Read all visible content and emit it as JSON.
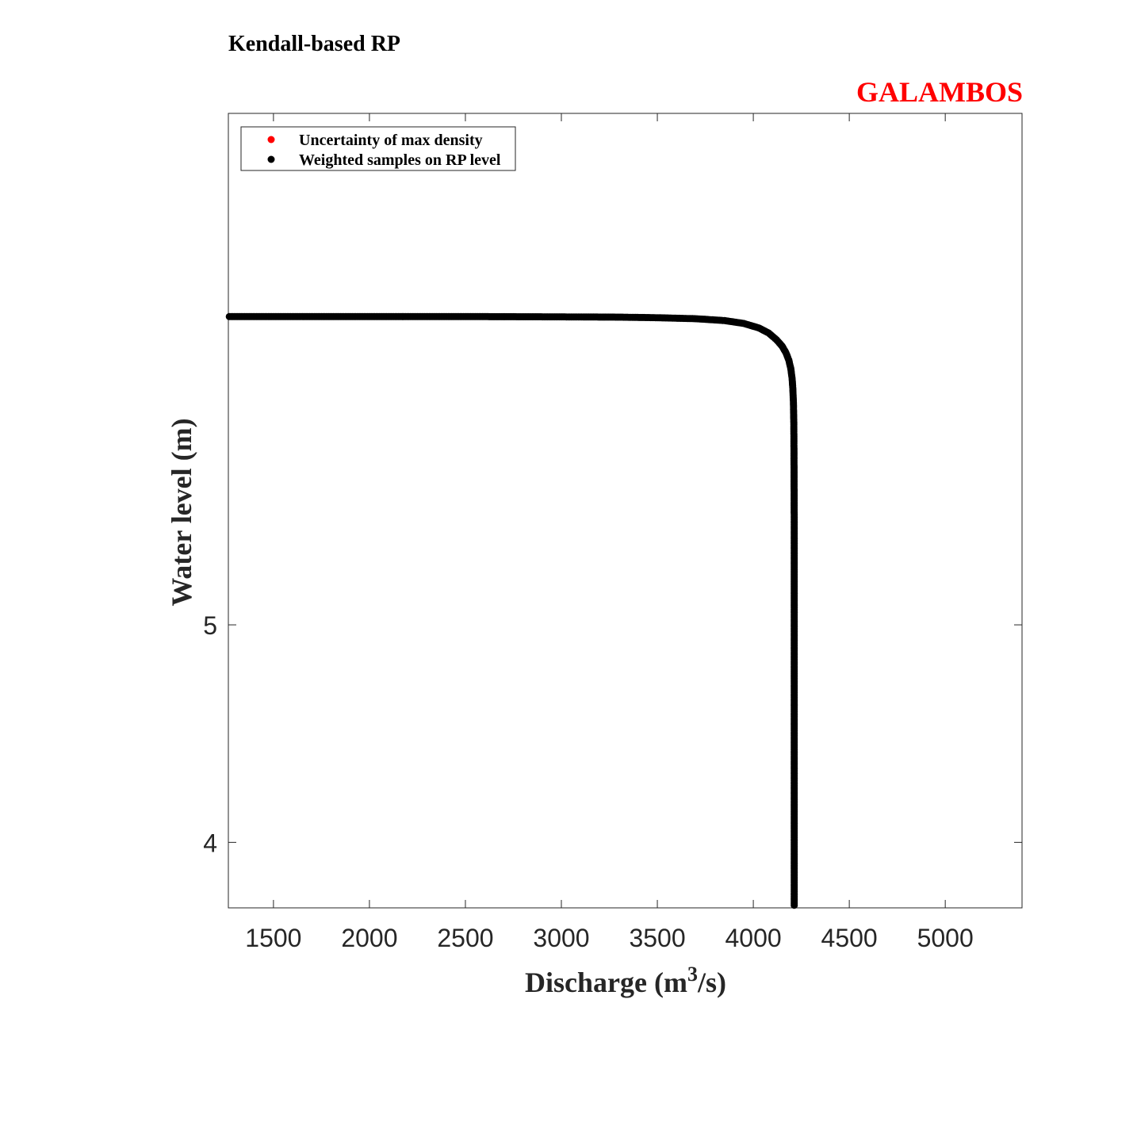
{
  "chart_data": {
    "type": "scatter",
    "title": "Kendall-based RP",
    "subtitle": "GALAMBOS",
    "xlabel_main": "Discharge (m",
    "xlabel_sup": "3",
    "xlabel_tail": "/s)",
    "ylabel": "Water level (m)",
    "xlim": [
      1265,
      5400
    ],
    "ylim": [
      3.74,
      8.45
    ],
    "y_scale": "log",
    "x_ticks": [
      1500,
      2000,
      2500,
      3000,
      3500,
      4000,
      4500,
      5000
    ],
    "x_tick_labels": [
      "1500",
      "2000",
      "2500",
      "3000",
      "3500",
      "4000",
      "4500",
      "5000"
    ],
    "y_ticks": [
      4,
      5
    ],
    "y_tick_labels": [
      "4",
      "5"
    ],
    "grid": false,
    "legend_position": "top-left",
    "legend": [
      {
        "label": "Uncertainty of max density",
        "color": "#ff0000"
      },
      {
        "label": "Weighted samples on RP level",
        "color": "#000000"
      }
    ],
    "series": [
      {
        "name": "Weighted samples on RP level",
        "color": "#000000",
        "curve": "rp_level",
        "x_asymptote": 4213,
        "y_asymptote": 6.86,
        "x_points": [
          [
            1270,
            6.86
          ],
          [
            1500,
            6.86
          ],
          [
            2000,
            6.86
          ],
          [
            2500,
            6.86
          ],
          [
            3000,
            6.858
          ],
          [
            3300,
            6.856
          ],
          [
            3500,
            6.852
          ],
          [
            3700,
            6.845
          ],
          [
            3850,
            6.832
          ],
          [
            3950,
            6.812
          ],
          [
            4030,
            6.78
          ],
          [
            4080,
            6.745
          ],
          [
            4120,
            6.7
          ],
          [
            4150,
            6.655
          ],
          [
            4170,
            6.61
          ],
          [
            4185,
            6.56
          ],
          [
            4195,
            6.505
          ],
          [
            4202,
            6.44
          ],
          [
            4206,
            6.37
          ],
          [
            4209,
            6.28
          ],
          [
            4211,
            6.15
          ],
          [
            4212,
            5.95
          ],
          [
            4213,
            5.6
          ],
          [
            4213,
            5.2
          ],
          [
            4213,
            4.8
          ],
          [
            4213,
            4.4
          ],
          [
            4213,
            4.1
          ],
          [
            4213,
            3.9
          ],
          [
            4213,
            3.75
          ]
        ]
      },
      {
        "name": "Uncertainty of max density",
        "color": "#ff0000",
        "points": []
      }
    ]
  }
}
